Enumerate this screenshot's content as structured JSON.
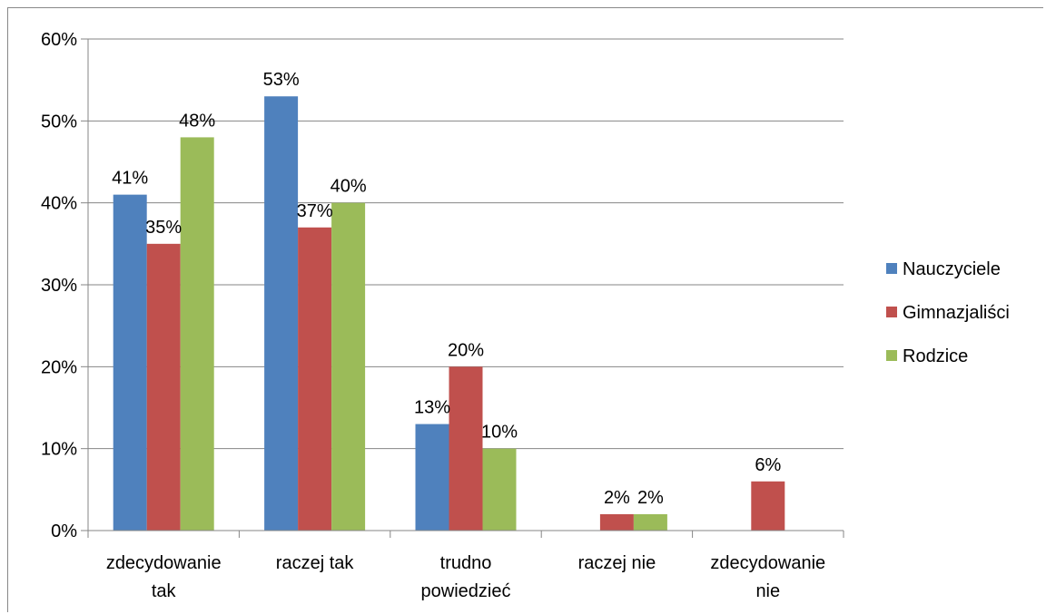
{
  "chart_data": {
    "type": "bar",
    "categories": [
      [
        "zdecydowanie",
        "tak"
      ],
      [
        "raczej tak"
      ],
      [
        "trudno",
        "powiedzieć"
      ],
      [
        "raczej nie"
      ],
      [
        "zdecydowanie",
        "nie"
      ]
    ],
    "series": [
      {
        "name": "Nauczyciele",
        "color": "#4f81bd",
        "values": [
          41,
          53,
          13,
          0,
          0
        ],
        "labels": [
          "41%",
          "53%",
          "13%",
          "",
          ""
        ]
      },
      {
        "name": "Gimnazjaliści",
        "color": "#c0504d",
        "values": [
          35,
          37,
          20,
          2,
          6
        ],
        "labels": [
          "35%",
          "37%",
          "20%",
          "2%",
          "6%"
        ]
      },
      {
        "name": "Rodzice",
        "color": "#9bbb59",
        "values": [
          48,
          40,
          10,
          2,
          0
        ],
        "labels": [
          "48%",
          "40%",
          "10%",
          "2%",
          ""
        ]
      }
    ],
    "y_ticks": [
      "0%",
      "10%",
      "20%",
      "30%",
      "40%",
      "50%",
      "60%"
    ],
    "ylim": [
      0,
      60
    ],
    "grid": true,
    "legend_position": "right",
    "title": "",
    "xlabel": "",
    "ylabel": ""
  }
}
